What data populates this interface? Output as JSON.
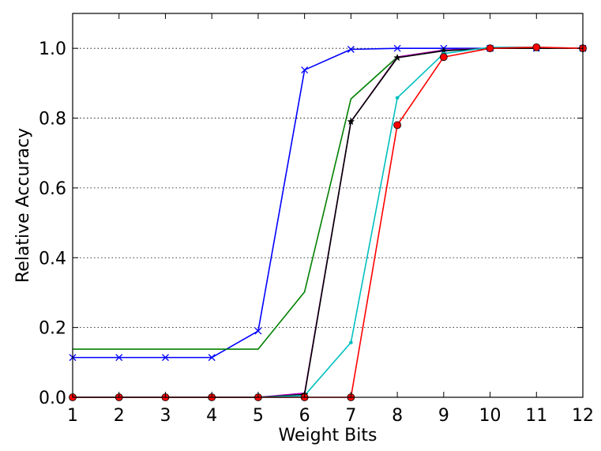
{
  "chart_data": {
    "type": "line",
    "xlabel": "Weight Bits",
    "ylabel": "Relative Accuracy",
    "xlim": [
      1,
      12
    ],
    "ylim": [
      0,
      1.1
    ],
    "x_ticks": [
      1,
      2,
      3,
      4,
      5,
      6,
      7,
      8,
      9,
      10,
      11,
      12
    ],
    "y_ticks": [
      0.0,
      0.2,
      0.4,
      0.6,
      0.8,
      1.0
    ],
    "y_tick_labels": [
      "0.0",
      "0.2",
      "0.4",
      "0.6",
      "0.8",
      "1.0"
    ],
    "grid": "horizontal dotted",
    "x": [
      1,
      2,
      3,
      4,
      5,
      6,
      7,
      8,
      9,
      10,
      11,
      12
    ],
    "series": [
      {
        "color": "#0000ff",
        "marker": "x",
        "values": [
          0.114,
          0.114,
          0.114,
          0.114,
          0.19,
          0.938,
          0.997,
          1.0,
          1.0,
          1.0,
          1.0,
          1.0
        ]
      },
      {
        "color": "#008000",
        "marker": "none",
        "values": [
          0.138,
          0.138,
          0.138,
          0.138,
          0.138,
          0.302,
          0.855,
          0.975,
          0.995,
          1.0,
          1.0,
          1.0
        ]
      },
      {
        "color": "#bf00bf",
        "marker": "none",
        "values": [
          0.0,
          0.0,
          0.0,
          0.0,
          0.0,
          0.012,
          0.79,
          0.975,
          0.995,
          1.0,
          1.0,
          1.0
        ]
      },
      {
        "color": "#000000",
        "marker": "star",
        "values": [
          0.0,
          0.0,
          0.0,
          0.0,
          0.0,
          0.008,
          0.79,
          0.973,
          0.993,
          1.0,
          1.0,
          1.0
        ]
      },
      {
        "color": "#00bfbf",
        "marker": "dot",
        "values": [
          0.0,
          0.0,
          0.0,
          0.0,
          0.0,
          0.005,
          0.157,
          0.858,
          0.985,
          1.003,
          1.003,
          1.0
        ]
      },
      {
        "color": "#ff0000",
        "marker": "circle",
        "values": [
          0.0,
          0.0,
          0.0,
          0.0,
          0.0,
          0.0,
          0.0,
          0.78,
          0.975,
          1.0,
          1.003,
          1.0
        ]
      }
    ]
  }
}
